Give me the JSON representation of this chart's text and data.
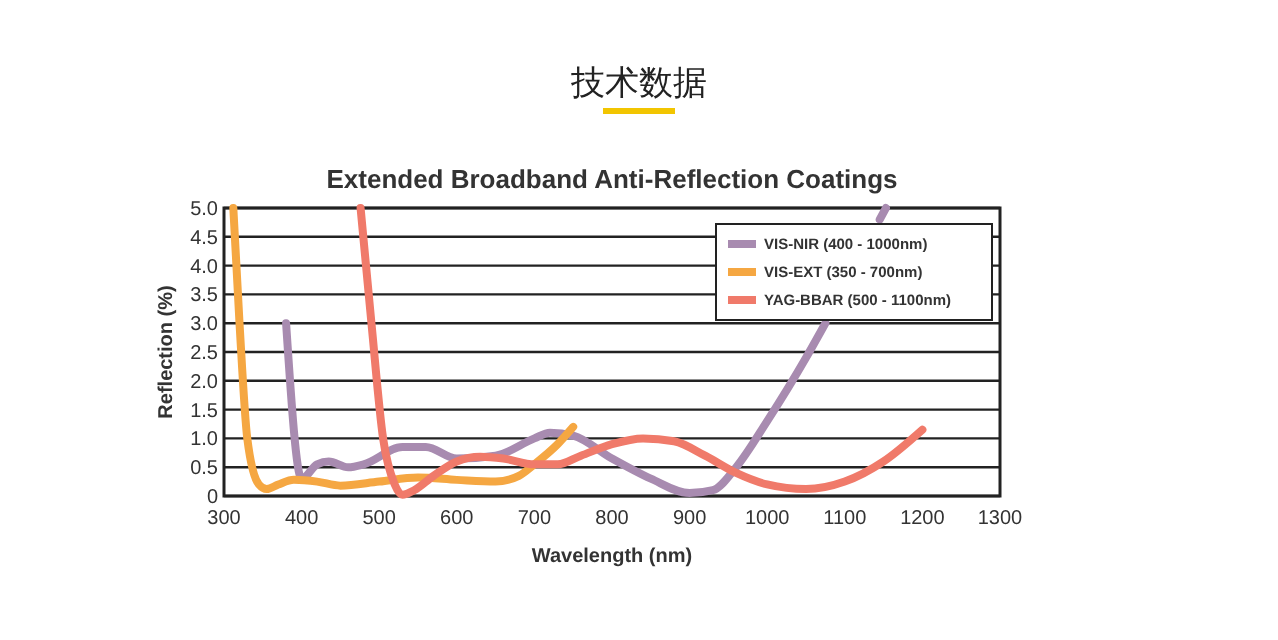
{
  "chart_data": {
    "type": "line",
    "title": "Extended Broadband Anti-Reflection Coatings",
    "annotations": [
      "技术数据"
    ],
    "xlabel": "Wavelength (nm)",
    "ylabel": "Reflection (%)",
    "xlim": [
      300,
      1300
    ],
    "xticks": [
      300,
      400,
      500,
      600,
      700,
      800,
      900,
      1000,
      1100,
      1200,
      1300
    ],
    "ylim": [
      0,
      5
    ],
    "yticks": [
      0,
      0.5,
      {
        "value": 1,
        "label": "1.0"
      },
      1.5,
      {
        "value": 2,
        "label": "2.0"
      },
      2.5,
      {
        "value": 3,
        "label": "3.0"
      },
      3.5,
      {
        "value": 4,
        "label": "4.0"
      },
      4.5,
      {
        "value": 5,
        "label": "5.0"
      }
    ],
    "grid": "y",
    "legend": "top right",
    "line_style": "solid",
    "marker": "none",
    "series": [
      {
        "name": "VIS-NIR (400 - 1000nm)",
        "color": "#a88bb0",
        "x": [
          380,
          400,
          420,
          435,
          460,
          480,
          530,
          560,
          600,
          650,
          700,
          720,
          750,
          800,
          850,
          900,
          930,
          960,
          1000,
          1050,
          1075,
          1100,
          1145,
          1153
        ],
        "values": [
          3.0,
          0.3,
          0.55,
          0.6,
          0.5,
          0.55,
          0.85,
          0.85,
          0.65,
          0.7,
          1.0,
          1.1,
          1.05,
          0.65,
          0.3,
          0.05,
          0.1,
          0.5,
          1.3,
          2.4,
          3.0,
          null,
          4.8,
          5.0
        ]
      },
      {
        "name": "VIS-EXT (350 - 700nm)",
        "color": "#f5a742",
        "x": [
          312,
          320,
          330,
          345,
          355,
          370,
          390,
          420,
          450,
          500,
          550,
          600,
          650,
          680,
          700,
          730,
          750
        ],
        "values": [
          5.0,
          3.0,
          1.0,
          0.2,
          0.12,
          0.2,
          0.28,
          0.25,
          0.18,
          0.25,
          0.32,
          0.28,
          0.25,
          0.35,
          0.55,
          0.9,
          1.2
        ]
      },
      {
        "name": "YAG-BBAR (500 - 1100nm)",
        "color": "#f07a6a",
        "x": [
          476,
          490,
          505,
          520,
          530,
          545,
          570,
          600,
          630,
          660,
          700,
          730,
          760,
          800,
          840,
          880,
          920,
          960,
          1000,
          1050,
          1100,
          1150,
          1200
        ],
        "values": [
          5.0,
          3.0,
          1.0,
          0.2,
          0.02,
          0.1,
          0.35,
          0.6,
          0.68,
          0.65,
          0.55,
          0.55,
          0.7,
          0.9,
          1.0,
          0.95,
          0.7,
          0.4,
          0.2,
          0.12,
          0.25,
          0.6,
          1.15
        ]
      }
    ]
  }
}
